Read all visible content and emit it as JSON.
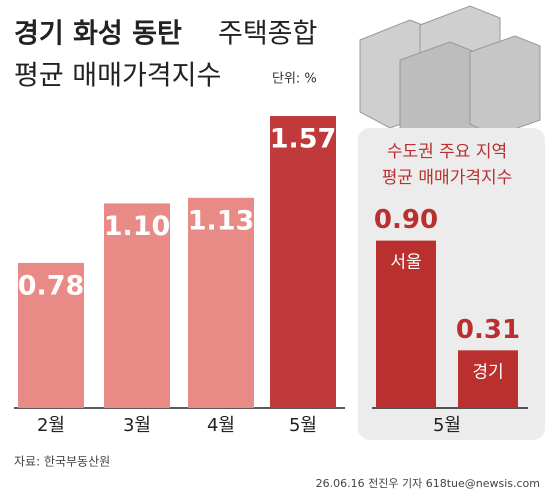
{
  "header": {
    "title": [
      "경기 화성 동탄",
      "주택종합",
      "평균 매매가격지수"
    ],
    "unit": "단위: %"
  },
  "chart_data": [
    {
      "type": "bar",
      "categories": [
        "2월",
        "3월",
        "4월",
        "5월"
      ],
      "values": [
        0.78,
        1.1,
        1.13,
        1.57
      ],
      "value_labels": [
        "0.78",
        "1.10",
        "1.13",
        "1.57"
      ],
      "colors": [
        "#e88a86",
        "#e88a86",
        "#e88a86",
        "#c0393b"
      ]
    },
    {
      "type": "bar",
      "title": [
        "수도권 주요 지역",
        "평균 매매가격지수"
      ],
      "xlabel": "5월",
      "categories": [
        "서울",
        "경기"
      ],
      "values": [
        0.9,
        0.31
      ],
      "value_labels": [
        "0.90",
        "0.31"
      ],
      "color": "#b9302f"
    }
  ],
  "footer": {
    "source": "자료: 한국부동산원",
    "credit": "26.06.16 전진우 기자 618tue@newsis.com"
  }
}
